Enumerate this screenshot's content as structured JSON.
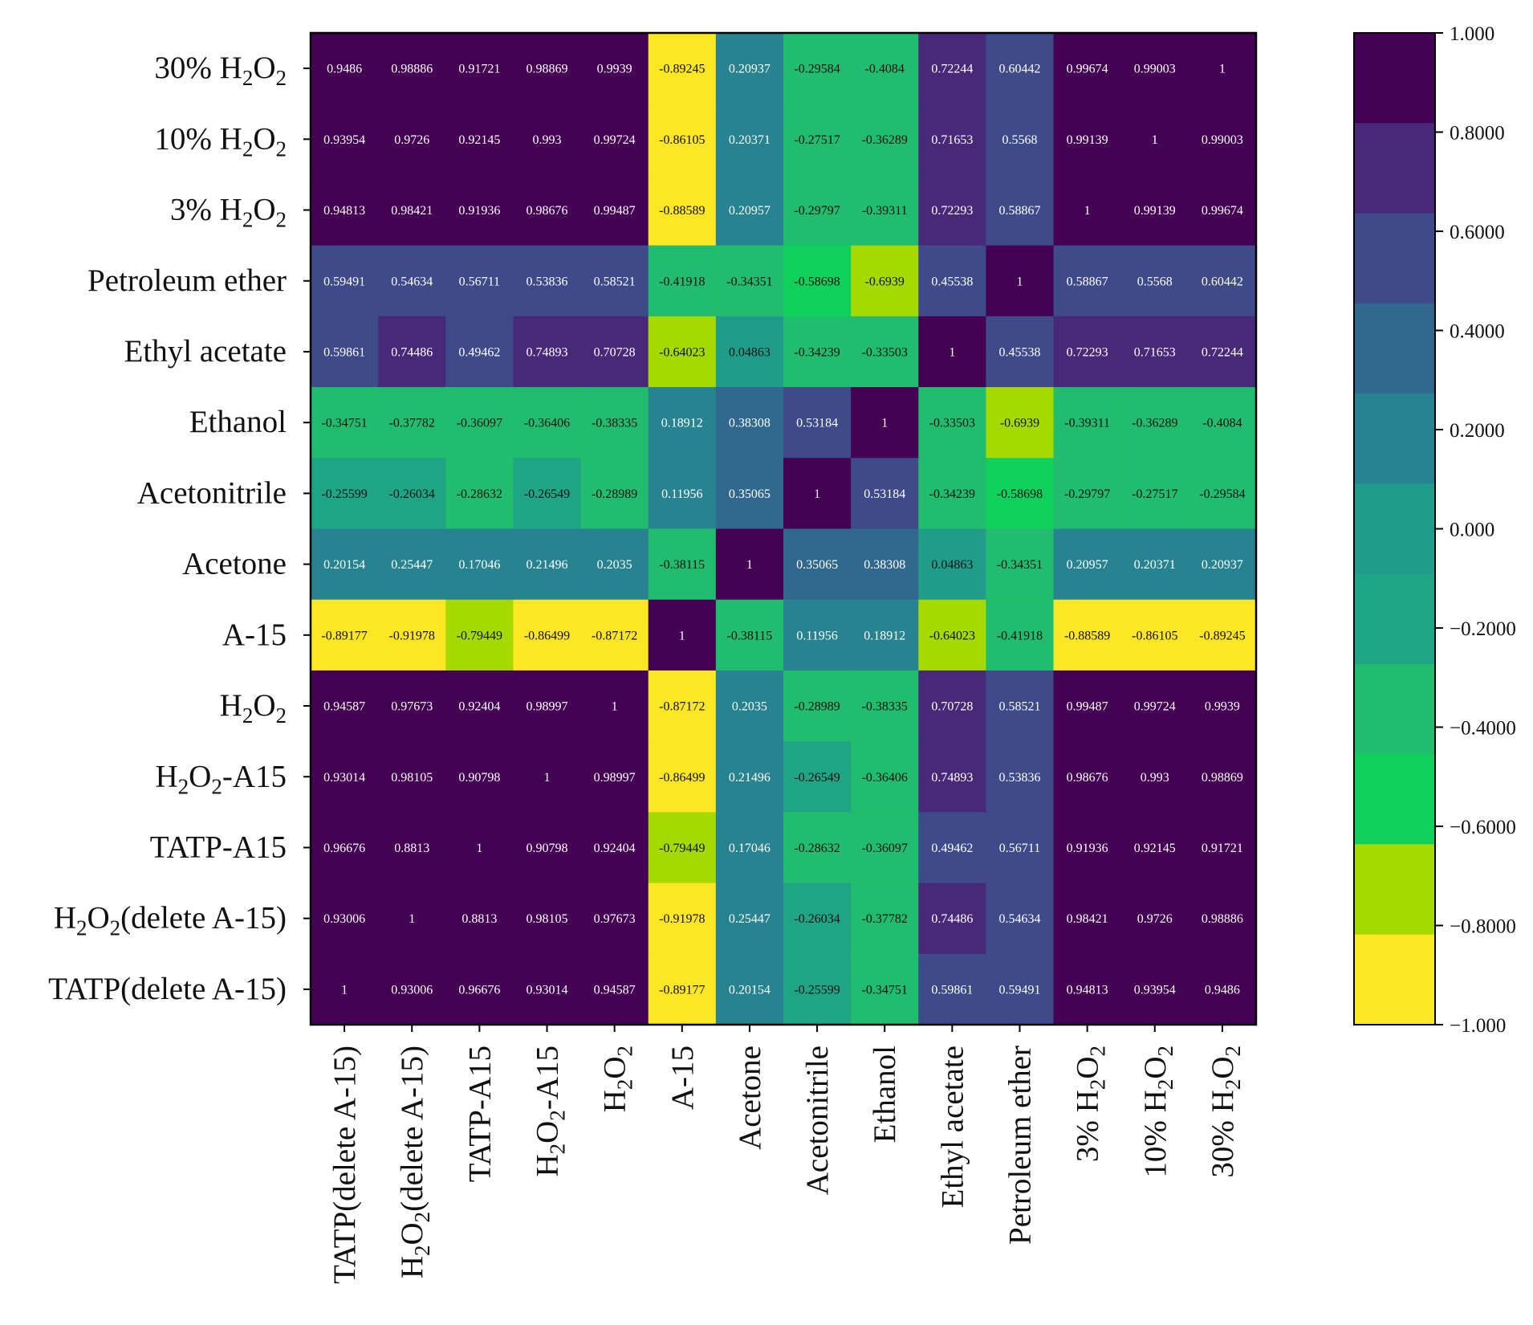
{
  "chart_data": {
    "type": "heatmap",
    "title": "",
    "rows": [
      "30% H₂O₂",
      "10% H₂O₂",
      "3% H₂O₂",
      "Petroleum ether",
      "Ethyl acetate",
      "Ethanol",
      "Acetonitrile",
      "Acetone",
      "A-15",
      "H₂O₂",
      "H₂O₂-A15",
      "TATP-A15",
      "H₂O₂(delete A-15)",
      "TATP(delete A-15)"
    ],
    "columns": [
      "TATP(delete A-15)",
      "H₂O₂(delete A-15)",
      "TATP-A15",
      "H₂O₂-A15",
      "H₂O₂",
      "A-15",
      "Acetone",
      "Acetonitrile",
      "Ethanol",
      "Ethyl acetate",
      "Petroleum ether",
      "3% H₂O₂",
      "10% H₂O₂",
      "30% H₂O₂"
    ],
    "values": [
      [
        "0.9486",
        "0.98886",
        "0.91721",
        "0.98869",
        "0.9939",
        "-0.89245",
        "0.20937",
        "-0.29584",
        "-0.4084",
        "0.72244",
        "0.60442",
        "0.99674",
        "0.99003",
        "1"
      ],
      [
        "0.93954",
        "0.9726",
        "0.92145",
        "0.993",
        "0.99724",
        "-0.86105",
        "0.20371",
        "-0.27517",
        "-0.36289",
        "0.71653",
        "0.5568",
        "0.99139",
        "1",
        "0.99003"
      ],
      [
        "0.94813",
        "0.98421",
        "0.91936",
        "0.98676",
        "0.99487",
        "-0.88589",
        "0.20957",
        "-0.29797",
        "-0.39311",
        "0.72293",
        "0.58867",
        "1",
        "0.99139",
        "0.99674"
      ],
      [
        "0.59491",
        "0.54634",
        "0.56711",
        "0.53836",
        "0.58521",
        "-0.41918",
        "-0.34351",
        "-0.58698",
        "-0.6939",
        "0.45538",
        "1",
        "0.58867",
        "0.5568",
        "0.60442"
      ],
      [
        "0.59861",
        "0.74486",
        "0.49462",
        "0.74893",
        "0.70728",
        "-0.64023",
        "0.04863",
        "-0.34239",
        "-0.33503",
        "1",
        "0.45538",
        "0.72293",
        "0.71653",
        "0.72244"
      ],
      [
        "-0.34751",
        "-0.37782",
        "-0.36097",
        "-0.36406",
        "-0.38335",
        "0.18912",
        "0.38308",
        "0.53184",
        "1",
        "-0.33503",
        "-0.6939",
        "-0.39311",
        "-0.36289",
        "-0.4084"
      ],
      [
        "-0.25599",
        "-0.26034",
        "-0.28632",
        "-0.26549",
        "-0.28989",
        "0.11956",
        "0.35065",
        "1",
        "0.53184",
        "-0.34239",
        "-0.58698",
        "-0.29797",
        "-0.27517",
        "-0.29584"
      ],
      [
        "0.20154",
        "0.25447",
        "0.17046",
        "0.21496",
        "0.2035",
        "-0.38115",
        "1",
        "0.35065",
        "0.38308",
        "0.04863",
        "-0.34351",
        "0.20957",
        "0.20371",
        "0.20937"
      ],
      [
        "-0.89177",
        "-0.91978",
        "-0.79449",
        "-0.86499",
        "-0.87172",
        "1",
        "-0.38115",
        "0.11956",
        "0.18912",
        "-0.64023",
        "-0.41918",
        "-0.88589",
        "-0.86105",
        "-0.89245"
      ],
      [
        "0.94587",
        "0.97673",
        "0.92404",
        "0.98997",
        "1",
        "-0.87172",
        "0.2035",
        "-0.28989",
        "-0.38335",
        "0.70728",
        "0.58521",
        "0.99487",
        "0.99724",
        "0.9939"
      ],
      [
        "0.93014",
        "0.98105",
        "0.90798",
        "1",
        "0.98997",
        "-0.86499",
        "0.21496",
        "-0.26549",
        "-0.36406",
        "0.74893",
        "0.53836",
        "0.98676",
        "0.993",
        "0.98869"
      ],
      [
        "0.96676",
        "0.8813",
        "1",
        "0.90798",
        "0.92404",
        "-0.79449",
        "0.17046",
        "-0.28632",
        "-0.36097",
        "0.49462",
        "0.56711",
        "0.91936",
        "0.92145",
        "0.91721"
      ],
      [
        "0.93006",
        "1",
        "0.8813",
        "0.98105",
        "0.97673",
        "-0.91978",
        "0.25447",
        "-0.26034",
        "-0.37782",
        "0.74486",
        "0.54634",
        "0.98421",
        "0.9726",
        "0.98886"
      ],
      [
        "1",
        "0.93006",
        "0.96676",
        "0.93014",
        "0.94587",
        "-0.89177",
        "0.20154",
        "-0.25599",
        "-0.34751",
        "0.59861",
        "0.59491",
        "0.94813",
        "0.93954",
        "0.9486"
      ]
    ],
    "colorbar": {
      "range": [
        -1,
        1
      ],
      "tick_values": [
        1,
        0.8,
        0.6,
        0.4,
        0.2,
        0,
        -0.2,
        -0.4,
        -0.6,
        -0.8,
        -1
      ],
      "tick_labels": [
        "1.000",
        "0.8000",
        "0.6000",
        "0.4000",
        "0.2000",
        "0.000",
        "−0.2000",
        "−0.4000",
        "−0.6000",
        "−0.8000",
        "−1.000"
      ],
      "colors_top_to_bottom": [
        "#440154",
        "#482979",
        "#3e4a89",
        "#31688e",
        "#26838f",
        "#1f9d8a",
        "#20a486",
        "#21bc6d",
        "#0fd05b",
        "#a5d901",
        "#fde624"
      ],
      "text_color_dark": "#111111",
      "text_color_light": "#ffffff"
    },
    "legend": "right"
  }
}
